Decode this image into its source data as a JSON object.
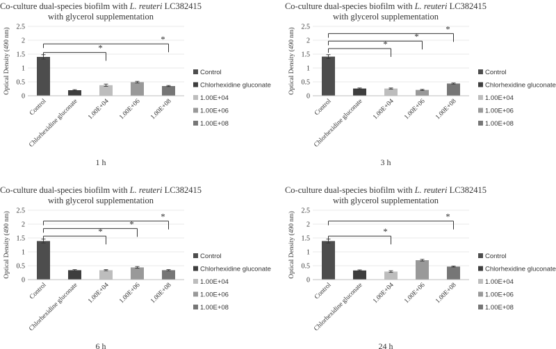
{
  "chart_data": [
    {
      "type": "bar",
      "title_parts": [
        {
          "text": "Co-culture dual-species  biofilm with ",
          "italic": false
        },
        {
          "text": "L. reuteri",
          "italic": true
        },
        {
          "text": " LC382415",
          "italic": false
        }
      ],
      "subtitle": "with glycerol  supplementation",
      "ylabel": "Optical Density (490 nm)",
      "xlabel": "1 h",
      "ylim": [
        0,
        2.5
      ],
      "yticks": [
        "0",
        "0.5",
        "1",
        "1.5",
        "2",
        "2.5"
      ],
      "categories": [
        "Control",
        "Chlorhexidine gluconate",
        "1.00E+04",
        "1.00E+06",
        "1.00E+08"
      ],
      "values": [
        1.4,
        0.2,
        0.38,
        0.49,
        0.35
      ],
      "errors": [
        0.08,
        0.02,
        0.04,
        0.03,
        0.02
      ],
      "significance": [
        {
          "from": 0,
          "to": 2,
          "y": 1.56,
          "label": "*"
        },
        {
          "from": 0,
          "to": 4,
          "y": 1.87,
          "label": "*"
        }
      ],
      "legend": [
        "Control",
        "Chlorhexidine gluconate",
        "1.00E+04",
        "1.00E+06",
        "1.00E+08"
      ]
    },
    {
      "type": "bar",
      "title_parts": [
        {
          "text": "Co-culture dual-species  biofilm with ",
          "italic": false
        },
        {
          "text": "L. reuteri",
          "italic": true
        },
        {
          "text": " LC382415",
          "italic": false
        }
      ],
      "subtitle": "with glycerol  supplementation",
      "ylabel": "Optical Density (490 nm)",
      "xlabel": "3 h",
      "ylim": [
        0,
        2.5
      ],
      "yticks": [
        "0",
        "0.5",
        "1",
        "1.5",
        "2",
        "2.5"
      ],
      "categories": [
        "Control",
        "Chlorhexidine gluconate",
        "1.00E+04",
        "1.00E+06",
        "1.00E+08"
      ],
      "values": [
        1.41,
        0.26,
        0.26,
        0.21,
        0.44
      ],
      "errors": [
        0.07,
        0.02,
        0.02,
        0.02,
        0.02
      ],
      "significance": [
        {
          "from": 0,
          "to": 2,
          "y": 1.7,
          "label": "*"
        },
        {
          "from": 0,
          "to": 3,
          "y": 1.97,
          "label": "*"
        },
        {
          "from": 0,
          "to": 4,
          "y": 2.24,
          "label": "*"
        }
      ],
      "legend": [
        "Control",
        "Chlorhexidine gluconate",
        "1.00E+04",
        "1.00E+06",
        "1.00E+08"
      ]
    },
    {
      "type": "bar",
      "title_parts": [
        {
          "text": "Co-culture dual-species  biofilm with ",
          "italic": false
        },
        {
          "text": "L. reuteri",
          "italic": true
        },
        {
          "text": " LC382415",
          "italic": false
        }
      ],
      "subtitle": "with glycerol  supplementation",
      "ylabel": "Optical Density (490 nm)",
      "xlabel": "6 h",
      "ylim": [
        0,
        2.5
      ],
      "yticks": [
        "0",
        "0.5",
        "1",
        "1.5",
        "2",
        "2.5"
      ],
      "categories": [
        "Control",
        "Chlorhexidine gluconate",
        "1.00E+04",
        "1.00E+06",
        "1.00E+08"
      ],
      "values": [
        1.39,
        0.34,
        0.34,
        0.44,
        0.34
      ],
      "errors": [
        0.07,
        0.02,
        0.02,
        0.03,
        0.02
      ],
      "significance": [
        {
          "from": 0,
          "to": 2,
          "y": 1.57,
          "label": "*"
        },
        {
          "from": 0,
          "to": 3,
          "y": 1.84,
          "label": "*"
        },
        {
          "from": 0,
          "to": 4,
          "y": 2.11,
          "label": "*"
        }
      ],
      "legend": [
        "Control",
        "Chlorhexidine gluconate",
        "1.00E+04",
        "1.00E+06",
        "1.00E+08"
      ]
    },
    {
      "type": "bar",
      "title_parts": [
        {
          "text": "Co-culture dual-species  biofilm with ",
          "italic": false
        },
        {
          "text": "L. reuteri",
          "italic": true
        },
        {
          "text": " LC382415",
          "italic": false
        }
      ],
      "subtitle": "with glycerol  supplementation",
      "ylabel": "Optical Density (490 nm)",
      "xlabel": "24 h",
      "ylim": [
        0,
        2.5
      ],
      "yticks": [
        "0",
        "0.5",
        "1",
        "1.5",
        "2",
        "2.5"
      ],
      "categories": [
        "Control",
        "Chlorhexidine gluconate",
        "1.00E+04",
        "1.00E+06",
        "1.00E+08"
      ],
      "values": [
        1.39,
        0.33,
        0.29,
        0.7,
        0.47
      ],
      "errors": [
        0.07,
        0.02,
        0.03,
        0.03,
        0.02
      ],
      "significance": [
        {
          "from": 0,
          "to": 2,
          "y": 1.57,
          "label": "*"
        },
        {
          "from": 0,
          "to": 4,
          "y": 2.11,
          "label": "*"
        }
      ],
      "legend": [
        "Control",
        "Chlorhexidine gluconate",
        "1.00E+04",
        "1.00E+06",
        "1.00E+08"
      ]
    }
  ],
  "colors": [
    "#4d4d4d",
    "#3e3e3e",
    "#bdbdbd",
    "#999999",
    "#767676"
  ]
}
